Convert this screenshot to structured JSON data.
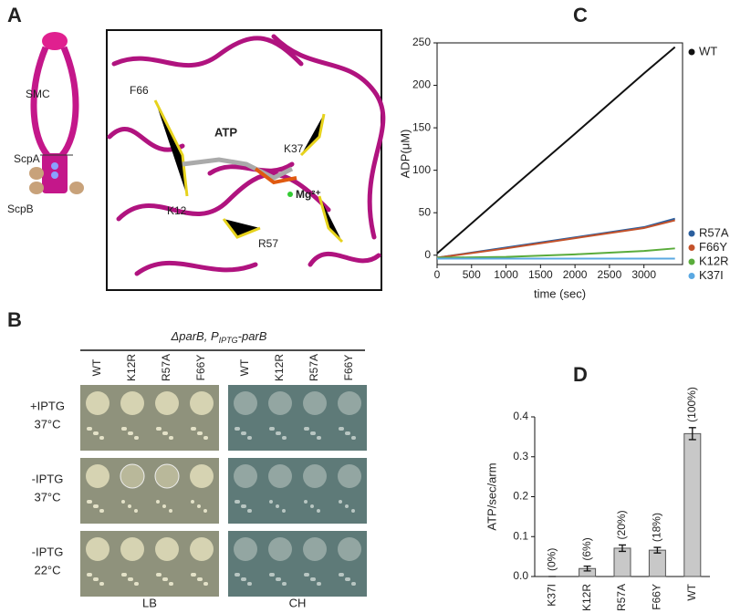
{
  "panel_labels": [
    "A",
    "B",
    "C",
    "D"
  ],
  "panel_a": {
    "cartoon_labels": [
      "SMC",
      "ScpA",
      "ScpB"
    ],
    "structure_labels": [
      "F66",
      "ATP",
      "K37",
      "K12",
      "Mg²⁺",
      "R57"
    ]
  },
  "panel_b": {
    "genotype": [
      "ΔparB, P",
      "IPTG",
      "-parB"
    ],
    "columns": [
      "WT",
      "K12R",
      "R57A",
      "F66Y"
    ],
    "rows": [
      [
        "+IPTG",
        "37°C"
      ],
      [
        "-IPTG",
        "37°C"
      ],
      [
        "-IPTG",
        "22°C"
      ]
    ],
    "media": [
      "LB",
      "CH"
    ]
  },
  "chart_data": [
    {
      "type": "line",
      "y_label": "ADP(μM)",
      "x_label": "time (sec)",
      "x": [
        0,
        1000,
        2000,
        3000,
        3450
      ],
      "xlim": [
        0,
        3560
      ],
      "xticks": [
        0,
        500,
        1000,
        1500,
        2000,
        2500,
        3000
      ],
      "ylim": [
        -11,
        250
      ],
      "yticks": [
        0,
        50,
        100,
        150,
        200,
        250
      ],
      "series": [
        {
          "name": "WT",
          "color": "#111111",
          "values": [
            2,
            73,
            143,
            214,
            245
          ]
        },
        {
          "name": "R57A",
          "color": "#2b5f9e",
          "values": [
            -3,
            9,
            21,
            33,
            43
          ]
        },
        {
          "name": "F66Y",
          "color": "#c4522a",
          "values": [
            -3,
            8,
            20,
            32,
            41
          ]
        },
        {
          "name": "K12R",
          "color": "#5aac3b",
          "values": [
            -3,
            -2,
            1,
            5,
            8
          ]
        },
        {
          "name": "K37I",
          "color": "#5aa8e2",
          "values": [
            -4,
            -4,
            -4,
            -4,
            -4
          ]
        }
      ]
    },
    {
      "type": "bar",
      "y_label": "ATP/sec/arm",
      "categories": [
        "K37I",
        "K12R",
        "R57A",
        "F66Y",
        "WT"
      ],
      "values": [
        0,
        0.02,
        0.071,
        0.066,
        0.358
      ],
      "errors": [
        0,
        0.006,
        0.008,
        0.007,
        0.015
      ],
      "annotations": [
        "(0%)",
        "(6%)",
        "(20%)",
        "(18%)",
        "(100%)"
      ],
      "color": "#c8c8c8",
      "ylim": [
        0,
        0.4
      ],
      "yticks": [
        {
          "value": 0,
          "label": "0.0"
        },
        0.1,
        0.2,
        0.3,
        0.4
      ]
    }
  ]
}
